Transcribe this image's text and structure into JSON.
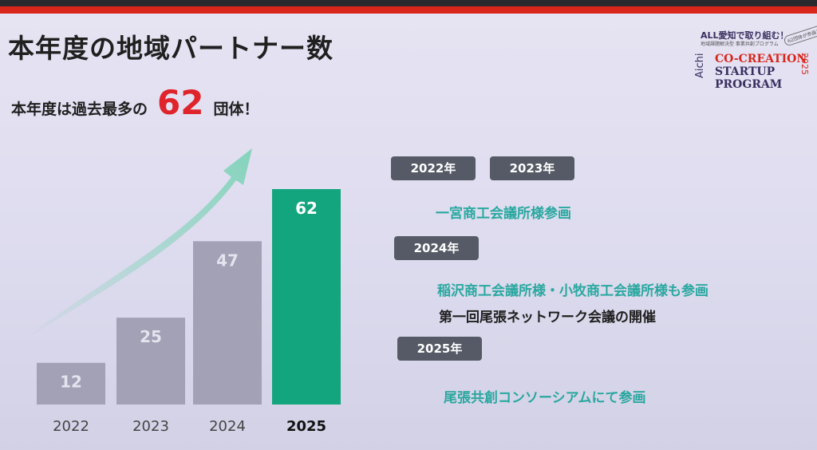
{
  "slide": {
    "title": "本年度の地域パートナー数",
    "subtitle_prefix": "本年度は過去最多の",
    "subtitle_number": "62",
    "subtitle_suffix": "団体！"
  },
  "logo": {
    "line1": "ALL愛知で取り組む！",
    "line2": "地域課題解決型 事業共創プログラム",
    "stamp": "62団体が参画！",
    "aichi": "Aichi",
    "co_creation": "CO-CREATION",
    "startup": "STARTUP",
    "program": "PROGRAM",
    "year": "2025"
  },
  "timeline": {
    "tag_2022": "2022年",
    "tag_2023": "2023年",
    "text_2022_2023": "一宮商工会議所様参画",
    "tag_2024": "2024年",
    "text_2024_a": "稲沢商工会議所様・小牧商工会議所様も参画",
    "text_2024_b": "第一回尾張ネットワーク会議の開催",
    "tag_2025": "2025年",
    "text_2025": "尾張共創コンソーシアムにて参画"
  },
  "colors": {
    "bar_default": "#a2a1b5",
    "bar_highlight": "#13a57d",
    "arrow": "#7fd3b8",
    "teal_text": "#2aa8a0",
    "accent_red": "#e0242c"
  },
  "chart_data": {
    "type": "bar",
    "categories": [
      "2022",
      "2023",
      "2024",
      "2025"
    ],
    "values": [
      12,
      25,
      47,
      62
    ],
    "highlight_index": 3,
    "ylim": [
      0,
      62
    ],
    "title": "",
    "xlabel": "",
    "ylabel": "",
    "grid": false,
    "trend_arrow": true
  }
}
